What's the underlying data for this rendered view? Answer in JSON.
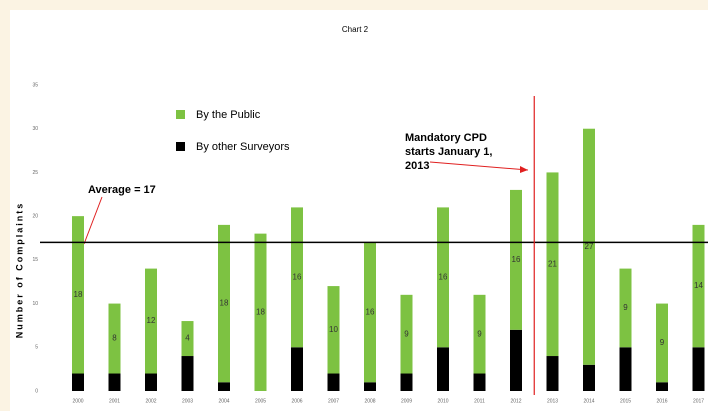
{
  "chart_data": {
    "type": "bar",
    "stacked": true,
    "title": "Chart 2",
    "y_label": "Number of Complaints",
    "categories": [
      "2000",
      "2001",
      "2002",
      "2003",
      "2004",
      "2005",
      "2006",
      "2007",
      "2008",
      "2009",
      "2010",
      "2011",
      "2012",
      "2013",
      "2014",
      "2015",
      "2016",
      "2017"
    ],
    "series": [
      {
        "name": "By the Public",
        "color": "#7dc242",
        "values": [
          18,
          8,
          12,
          4,
          18,
          18,
          16,
          10,
          16,
          9,
          16,
          9,
          16,
          21,
          27,
          9,
          9,
          14
        ]
      },
      {
        "name": "By other Surveyors",
        "color": "#000000",
        "values": [
          2,
          2,
          2,
          4,
          1,
          0,
          5,
          2,
          1,
          2,
          5,
          2,
          7,
          4,
          3,
          5,
          1,
          5
        ]
      }
    ],
    "ylim": [
      0,
      35
    ],
    "yticks": [
      0,
      5,
      10,
      15,
      20,
      25,
      30,
      35
    ],
    "average": {
      "label": "Average = 17",
      "value": 17
    },
    "annotation": [
      "Mandatory CPD",
      "starts January 1,",
      "2013"
    ]
  }
}
